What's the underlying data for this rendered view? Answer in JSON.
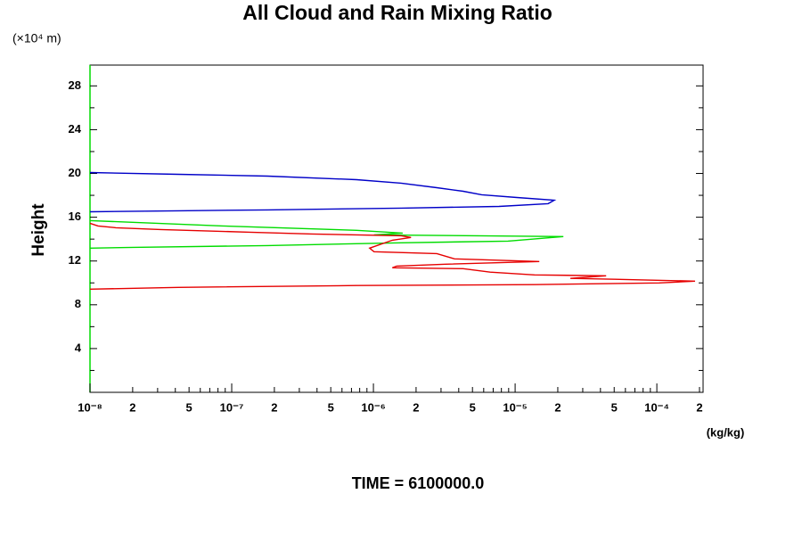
{
  "chart_data": {
    "type": "line",
    "title": "All Cloud and Rain Mixing Ratio",
    "y_unit_label": "(×10⁴ m)",
    "ylabel": "Height",
    "x_unit_label": "(kg/kg)",
    "annotation": "TIME = 6100000.0",
    "xscale": "log",
    "xlim": [
      1e-08,
      0.000212
    ],
    "ylim": [
      0,
      29.9
    ],
    "xticks": [
      {
        "value": 1e-08,
        "label": "10⁻⁸"
      },
      {
        "value": 2e-08,
        "label": "2"
      },
      {
        "value": 5e-08,
        "label": "5"
      },
      {
        "value": 1e-07,
        "label": "10⁻⁷"
      },
      {
        "value": 2e-07,
        "label": "2"
      },
      {
        "value": 5e-07,
        "label": "5"
      },
      {
        "value": 1e-06,
        "label": "10⁻⁶"
      },
      {
        "value": 2e-06,
        "label": "2"
      },
      {
        "value": 5e-06,
        "label": "5"
      },
      {
        "value": 1e-05,
        "label": "10⁻⁵"
      },
      {
        "value": 2e-05,
        "label": "2"
      },
      {
        "value": 5e-05,
        "label": "5"
      },
      {
        "value": 0.0001,
        "label": "10⁻⁴"
      },
      {
        "value": 0.0002,
        "label": "2"
      }
    ],
    "xminorticks": [
      3e-08,
      4e-08,
      6e-08,
      7e-08,
      8e-08,
      9e-08,
      3e-07,
      4e-07,
      6e-07,
      7e-07,
      8e-07,
      9e-07,
      3e-06,
      4e-06,
      6e-06,
      7e-06,
      8e-06,
      9e-06,
      3e-05,
      4e-05,
      6e-05,
      7e-05,
      8e-05,
      9e-05
    ],
    "yticks": [
      4,
      8,
      12,
      16,
      20,
      24,
      28
    ],
    "yminorticks": [
      2,
      6,
      10,
      14,
      18,
      22,
      26
    ],
    "series": [
      {
        "color": "#0000c8",
        "x": [
          1e-08,
          4.2e-08,
          1.79e-07,
          7.6e-07,
          1.57e-06,
          2.8e-06,
          4.3e-06,
          5.8e-06,
          1.03e-05,
          1.89e-05,
          1.71e-05,
          7.7e-06,
          1.57e-06,
          1.79e-07,
          4.2e-08,
          1e-08
        ],
        "y": [
          20.08,
          19.92,
          19.76,
          19.43,
          19.11,
          18.7,
          18.37,
          18.05,
          17.8,
          17.56,
          17.24,
          16.99,
          16.83,
          16.67,
          16.59,
          16.5
        ]
      },
      {
        "color": "#00dc00",
        "x": [
          1e-08,
          8.65e-08,
          7.6e-07,
          1.61e-06,
          1.01e-06,
          2.19e-05,
          8.9e-06,
          1.57e-06,
          1.79e-07,
          2.03e-08,
          1e-08
        ],
        "y": [
          15.69,
          15.2,
          14.8,
          14.55,
          14.39,
          14.23,
          13.82,
          13.66,
          13.41,
          13.25,
          13.17
        ]
      },
      {
        "color": "#e60000",
        "x": [
          1e-08,
          1.14e-08,
          1.52e-08,
          3.14e-08,
          1.34e-07,
          3.68e-07,
          7.6e-07,
          1.57e-06,
          1.84e-06,
          1.36e-06,
          9.4e-07,
          1.01e-06,
          2.8e-06,
          3.73e-06,
          1.48e-05,
          3.23e-06,
          1.46e-06,
          1.36e-06,
          4.3e-06,
          6.67e-06,
          1.37e-05,
          4.39e-05,
          2.45e-05,
          5.06e-05,
          0.000186,
          0.000104,
          1.37e-05,
          7.6e-07,
          4.2e-08,
          1e-08
        ],
        "y": [
          15.45,
          15.2,
          15.04,
          14.88,
          14.63,
          14.47,
          14.39,
          14.31,
          14.15,
          13.9,
          13.17,
          12.85,
          12.68,
          12.2,
          11.95,
          11.71,
          11.54,
          11.38,
          11.3,
          10.98,
          10.73,
          10.65,
          10.41,
          10.33,
          10.16,
          10.0,
          9.84,
          9.76,
          9.59,
          9.43
        ]
      }
    ]
  }
}
